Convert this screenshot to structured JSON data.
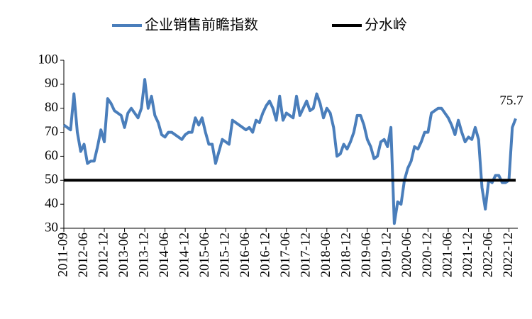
{
  "chart_data": {
    "type": "line",
    "categories": [
      "2011-09",
      null,
      null,
      null,
      null,
      null,
      "2012-06",
      null,
      null,
      null,
      null,
      null,
      "2012-12",
      null,
      null,
      null,
      null,
      null,
      "2013-06",
      null,
      null,
      null,
      null,
      null,
      "2013-12",
      null,
      null,
      null,
      null,
      null,
      "2014-06",
      null,
      null,
      null,
      null,
      null,
      "2014-12",
      null,
      null,
      null,
      null,
      null,
      "2015-06",
      null,
      null,
      null,
      null,
      null,
      "2015-12",
      null,
      null,
      null,
      null,
      null,
      "2016-06",
      null,
      null,
      null,
      null,
      null,
      "2016-12",
      null,
      null,
      null,
      null,
      null,
      "2017-06",
      null,
      null,
      null,
      null,
      null,
      "2017-12",
      null,
      null,
      null,
      null,
      null,
      "2018-06",
      null,
      null,
      null,
      null,
      null,
      "2018-12",
      null,
      null,
      null,
      null,
      null,
      "2019-06",
      null,
      null,
      null,
      null,
      null,
      "2019-12",
      null,
      null,
      null,
      null,
      null,
      "2020-06",
      null,
      null,
      null,
      null,
      null,
      "2020-12",
      null,
      null,
      null,
      null,
      null,
      "2021-06",
      null,
      null,
      null,
      null,
      null,
      "2021-12",
      null,
      null,
      null,
      null,
      null,
      "2022-06",
      null,
      null,
      null,
      null,
      null,
      "2022-12",
      null,
      null
    ],
    "series": [
      {
        "name": "企业销售前瞻指数",
        "color": "#4a7ebb",
        "values": [
          73,
          72,
          71,
          86,
          70,
          62,
          65,
          57,
          58,
          58,
          64,
          71,
          66,
          84,
          82,
          79,
          78,
          77,
          72,
          78,
          80,
          78,
          76,
          80,
          92,
          80,
          85,
          77,
          74,
          69,
          68,
          70,
          70,
          69,
          68,
          67,
          69,
          70,
          70,
          76,
          73,
          76,
          70,
          65,
          65,
          57,
          62,
          67,
          66,
          65,
          75,
          74,
          73,
          72,
          71,
          72,
          70,
          75,
          74,
          78,
          81,
          83,
          80,
          75,
          85,
          75,
          78,
          77,
          76,
          85,
          77,
          80,
          83,
          79,
          80,
          86,
          82,
          76,
          80,
          78,
          72,
          60,
          61,
          65,
          63,
          66,
          70,
          77,
          77,
          73,
          67,
          64,
          59,
          60,
          66,
          67,
          64,
          72,
          32,
          41,
          40,
          50,
          55,
          58,
          64,
          63,
          66,
          70,
          70,
          78,
          79,
          80,
          80,
          78,
          76,
          73,
          69,
          75,
          70,
          66,
          68,
          67,
          72,
          67,
          47,
          38,
          50,
          49,
          52,
          52,
          49,
          49,
          50,
          72,
          75.7
        ]
      },
      {
        "name": "分水岭",
        "color": "#000000",
        "value": 50
      }
    ],
    "ylim": [
      30,
      100
    ],
    "yticks": [
      30,
      40,
      50,
      60,
      70,
      80,
      90,
      100
    ],
    "grid": false
  }
}
